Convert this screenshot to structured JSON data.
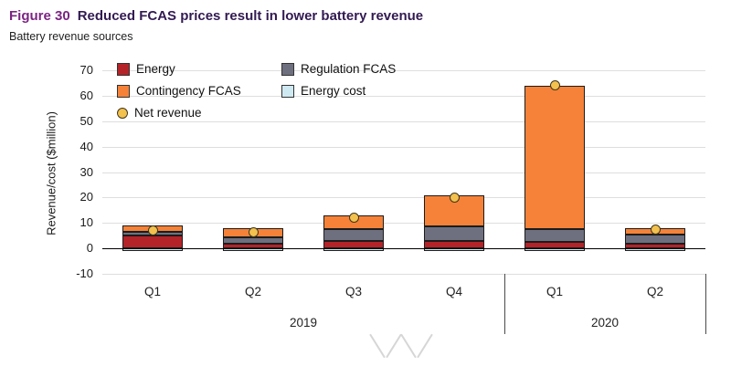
{
  "header": {
    "figure_label": "Figure 30",
    "title": "Reduced FCAS prices result in lower battery revenue",
    "subtitle": "Battery revenue sources"
  },
  "chart_data": {
    "type": "bar",
    "stacked": true,
    "title": "Battery revenue sources",
    "categories": [
      "Q1",
      "Q2",
      "Q3",
      "Q4",
      "Q1",
      "Q2"
    ],
    "year_groups": [
      {
        "label": "2019",
        "span": 4
      },
      {
        "label": "2020",
        "span": 2
      }
    ],
    "ylabel": "Revenue/cost ($million)",
    "xlabel": "",
    "ylim": [
      -10,
      70
    ],
    "yticks": [
      70,
      60,
      50,
      40,
      30,
      20,
      10,
      0,
      -10
    ],
    "grid": "horizontal",
    "legend_position": "inside-top-left",
    "series": [
      {
        "name": "Energy",
        "color": "#b42328",
        "values": [
          5,
          2,
          3,
          3,
          2.5,
          2
        ]
      },
      {
        "name": "Regulation FCAS",
        "color": "#6e7080",
        "values": [
          1.5,
          2.5,
          4.5,
          5.5,
          5,
          3.5
        ]
      },
      {
        "name": "Contingency FCAS",
        "color": "#f58238",
        "values": [
          2.5,
          3.5,
          5.5,
          12.5,
          56.5,
          2.5
        ]
      },
      {
        "name": "Energy cost",
        "color": "#cfe9f2",
        "values": [
          -1,
          -1,
          -1,
          -1,
          -1,
          -1
        ]
      }
    ],
    "markers": {
      "name": "Net revenue",
      "color": "#f2c14e",
      "values": [
        7,
        6.5,
        12,
        20,
        64,
        7.5
      ]
    }
  }
}
